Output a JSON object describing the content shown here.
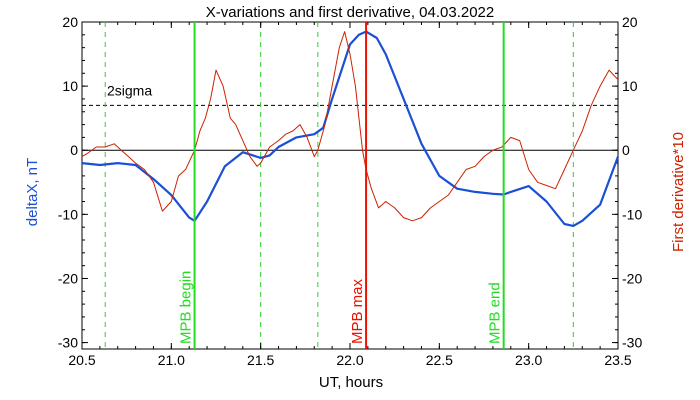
{
  "chart_data": {
    "type": "line",
    "title": "X-variations and first derivative, 04.03.2022",
    "xlabel": "UT, hours",
    "ylabel_left": "deltaX, nT",
    "ylabel_right": "First derivative*10",
    "xlim": [
      20.5,
      23.5
    ],
    "ylim": [
      -31,
      20
    ],
    "x_ticks": [
      20.5,
      21.0,
      21.5,
      22.0,
      22.5,
      23.0,
      23.5
    ],
    "x_tick_labels": [
      "20.5",
      "21.0",
      "21.5",
      "22.0",
      "22.5",
      "23.0",
      "23.5"
    ],
    "y_ticks": [
      20,
      10,
      0,
      -10,
      -20,
      -30
    ],
    "y_tick_labels": [
      "20",
      "10",
      "0",
      "-10",
      "-20",
      "-30"
    ],
    "zero_line": 0,
    "sigma_line": {
      "value": 7,
      "label": "2sigma"
    },
    "colors": {
      "deltaX": "#1a4fd6",
      "derivative": "#cc2200",
      "marker_green": "#22dd22",
      "marker_red": "#ee1100",
      "dashed_green": "#33cc33",
      "axis": "#000000"
    },
    "markers": [
      {
        "x": 21.13,
        "label": "MPB begin",
        "color": "green"
      },
      {
        "x": 22.09,
        "label": "MPB max",
        "color": "red"
      },
      {
        "x": 22.86,
        "label": "MPB end",
        "color": "green"
      }
    ],
    "dashed_lines_x": [
      20.63,
      21.5,
      21.82,
      23.25
    ],
    "series": [
      {
        "key": "deltaX",
        "x": [
          20.5,
          20.6,
          20.7,
          20.8,
          20.9,
          21.0,
          21.1,
          21.13,
          21.2,
          21.3,
          21.4,
          21.5,
          21.55,
          21.6,
          21.7,
          21.8,
          21.85,
          21.9,
          22.0,
          22.05,
          22.09,
          22.15,
          22.2,
          22.3,
          22.4,
          22.5,
          22.6,
          22.7,
          22.8,
          22.86,
          22.9,
          23.0,
          23.1,
          23.2,
          23.25,
          23.3,
          23.4,
          23.5
        ],
        "y": [
          -2,
          -2.3,
          -2,
          -2.3,
          -4.5,
          -7,
          -10.5,
          -11,
          -8,
          -2.5,
          -0.3,
          -1.2,
          -0.8,
          0.5,
          2,
          2.5,
          3.5,
          8,
          16.5,
          18,
          18.5,
          17.5,
          15,
          8,
          1,
          -4,
          -6,
          -6.5,
          -6.8,
          -6.9,
          -6.5,
          -5.6,
          -8,
          -11.5,
          -11.8,
          -11,
          -8.5,
          -1
        ]
      },
      {
        "key": "derivative",
        "x": [
          20.5,
          20.53,
          20.58,
          20.63,
          20.68,
          20.72,
          20.76,
          20.8,
          20.85,
          20.9,
          20.95,
          21.0,
          21.04,
          21.08,
          21.13,
          21.16,
          21.19,
          21.22,
          21.25,
          21.29,
          21.33,
          21.36,
          21.4,
          21.44,
          21.48,
          21.5,
          21.55,
          21.6,
          21.64,
          21.68,
          21.72,
          21.76,
          21.8,
          21.82,
          21.86,
          21.9,
          21.94,
          21.97,
          22.0,
          22.03,
          22.07,
          22.09,
          22.12,
          22.16,
          22.2,
          22.25,
          22.3,
          22.35,
          22.4,
          22.45,
          22.5,
          22.55,
          22.6,
          22.65,
          22.7,
          22.75,
          22.8,
          22.85,
          22.9,
          22.95,
          23.0,
          23.05,
          23.1,
          23.15,
          23.2,
          23.25,
          23.3,
          23.35,
          23.4,
          23.45,
          23.5
        ],
        "y": [
          -1,
          -0.5,
          0.5,
          0.5,
          1,
          0,
          -1,
          -2,
          -3,
          -5,
          -9.5,
          -8,
          -4,
          -3,
          0,
          3,
          5,
          8,
          12.5,
          10,
          5,
          4,
          1.5,
          -1,
          -2.5,
          -2,
          0.5,
          1.5,
          2.5,
          3,
          4,
          2,
          -1,
          0,
          4,
          10,
          16,
          18.5,
          15,
          10,
          0,
          -3,
          -6,
          -9,
          -8,
          -9,
          -10.5,
          -11,
          -10.5,
          -9,
          -8,
          -7,
          -5,
          -3,
          -2.5,
          -1,
          0,
          0.5,
          2,
          1.5,
          -3,
          -5,
          -5.5,
          -6,
          -3,
          0,
          3,
          7,
          10,
          12.5,
          11
        ]
      }
    ]
  }
}
